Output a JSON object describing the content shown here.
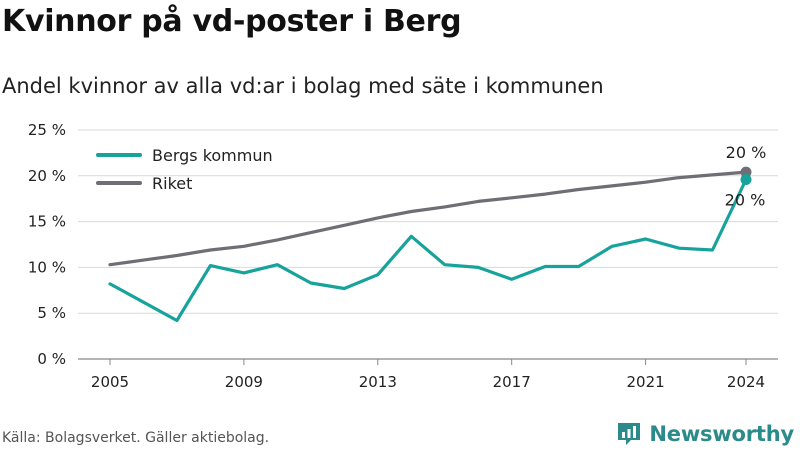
{
  "title": "Kvinnor på vd-poster i Berg",
  "subtitle": "Andel kvinnor av alla vd:ar i bolag med säte i kommunen",
  "source": "Källa: Bolagsverket. Gäller aktiebolag.",
  "brand": "Newsworthy",
  "colors": {
    "berg": "#17a39b",
    "riket": "#6f6e74",
    "grid": "#d9d9d9",
    "brand": "#2b8a8a"
  },
  "chart_data": {
    "type": "line",
    "x": [
      2005,
      2006,
      2007,
      2008,
      2009,
      2010,
      2011,
      2012,
      2013,
      2014,
      2015,
      2016,
      2017,
      2018,
      2019,
      2020,
      2021,
      2022,
      2023,
      2024
    ],
    "series": [
      {
        "name": "Bergs kommun",
        "color": "#17a39b",
        "values": [
          8.2,
          6.2,
          4.2,
          10.2,
          9.4,
          10.3,
          8.3,
          7.7,
          9.2,
          13.4,
          10.3,
          10.0,
          8.7,
          10.1,
          10.1,
          12.3,
          13.1,
          12.1,
          11.9,
          19.6
        ],
        "end_label": "20 %"
      },
      {
        "name": "Riket",
        "color": "#6f6e74",
        "values": [
          10.3,
          10.8,
          11.3,
          11.9,
          12.3,
          13.0,
          13.8,
          14.6,
          15.4,
          16.1,
          16.6,
          17.2,
          17.6,
          18.0,
          18.5,
          18.9,
          19.3,
          19.8,
          20.1,
          20.4
        ],
        "end_label": "20 %"
      }
    ],
    "xticks": [
      2005,
      2009,
      2013,
      2017,
      2021,
      2024
    ],
    "yticks": [
      0,
      5,
      10,
      15,
      20,
      25
    ],
    "ytick_labels": [
      "0 %",
      "5 %",
      "10 %",
      "15 %",
      "20 %",
      "25 %"
    ],
    "ylim": [
      0,
      25
    ],
    "xlim": [
      2005,
      2024
    ],
    "legend": "top-left",
    "grid": true
  }
}
